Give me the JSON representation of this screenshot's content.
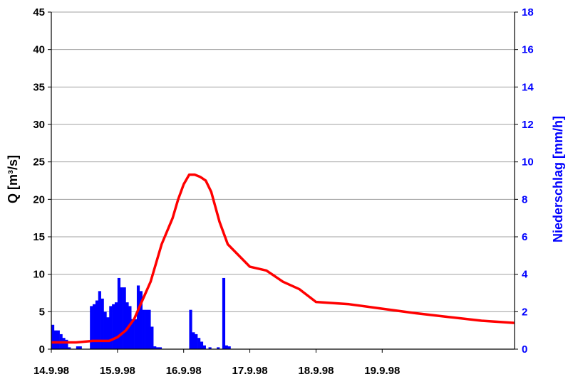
{
  "chart_data": {
    "type": "line+bar",
    "colors": {
      "discharge": "#ff0000",
      "rain": "#0000ff",
      "grid": "#a0a0a0",
      "axis": "#000000"
    },
    "x_axis": {
      "type": "date",
      "range": [
        "1998-09-14T00:00",
        "1998-09-20T24:00"
      ],
      "tick_labels": [
        "14.9.98",
        "15.9.98",
        "16.9.98",
        "17.9.98",
        "18.9.98",
        "19.9.98"
      ],
      "tick_values": [
        "1998-09-14T00:00",
        "1998-09-15T00:00",
        "1998-09-16T00:00",
        "1998-09-17T00:00",
        "1998-09-18T00:00",
        "1998-09-19T00:00"
      ]
    },
    "y_left": {
      "label": "Q [m³/s]",
      "ylim": [
        0,
        45
      ],
      "ticks": [
        0,
        5,
        10,
        15,
        20,
        25,
        30,
        35,
        40,
        45
      ]
    },
    "y_right": {
      "label": "Niederschlag [mm/h]",
      "ylim": [
        0,
        18
      ],
      "ticks": [
        0,
        2,
        4,
        6,
        8,
        10,
        12,
        14,
        16,
        18
      ]
    },
    "grid": "horizontal",
    "series": [
      {
        "type": "line",
        "axis": "left",
        "x": [
          "1998-09-14T00:00",
          "1998-09-14T09:00",
          "1998-09-14T15:00",
          "1998-09-14T21:00",
          "1998-09-15T00:00",
          "1998-09-15T03:00",
          "1998-09-15T06:00",
          "1998-09-15T09:00",
          "1998-09-15T12:00",
          "1998-09-15T16:00",
          "1998-09-15T20:00",
          "1998-09-15T22:00",
          "1998-09-16T00:00",
          "1998-09-16T02:00",
          "1998-09-16T04:00",
          "1998-09-16T06:00",
          "1998-09-16T08:00",
          "1998-09-16T10:00",
          "1998-09-16T13:00",
          "1998-09-16T16:00",
          "1998-09-17T00:00",
          "1998-09-17T06:00",
          "1998-09-17T12:00",
          "1998-09-17T18:00",
          "1998-09-18T00:00",
          "1998-09-18T12:00",
          "1998-09-19T00:00",
          "1998-09-19T12:00",
          "1998-09-20T00:00",
          "1998-09-20T12:00",
          "1998-09-20T24:00"
        ],
        "values": [
          0.9,
          0.9,
          1.1,
          1.1,
          1.6,
          2.5,
          4.0,
          6.5,
          9.0,
          14.0,
          17.5,
          20.0,
          22.0,
          23.3,
          23.3,
          23.0,
          22.5,
          21.0,
          17.0,
          14.0,
          11.0,
          10.5,
          9.0,
          8.0,
          6.3,
          6.0,
          5.4,
          4.8,
          4.3,
          3.8,
          3.5
        ]
      },
      {
        "type": "bar",
        "axis": "right",
        "bar_width_hours": 1,
        "x": [
          "1998-09-14T00:00",
          "1998-09-14T01:00",
          "1998-09-14T02:00",
          "1998-09-14T03:00",
          "1998-09-14T04:00",
          "1998-09-14T05:00",
          "1998-09-14T06:00",
          "1998-09-14T09:00",
          "1998-09-14T10:00",
          "1998-09-14T14:00",
          "1998-09-14T15:00",
          "1998-09-14T16:00",
          "1998-09-14T17:00",
          "1998-09-14T18:00",
          "1998-09-14T19:00",
          "1998-09-14T20:00",
          "1998-09-14T21:00",
          "1998-09-14T22:00",
          "1998-09-14T23:00",
          "1998-09-15T00:00",
          "1998-09-15T01:00",
          "1998-09-15T02:00",
          "1998-09-15T03:00",
          "1998-09-15T04:00",
          "1998-09-15T05:00",
          "1998-09-15T06:00",
          "1998-09-15T07:00",
          "1998-09-15T08:00",
          "1998-09-15T09:00",
          "1998-09-15T10:00",
          "1998-09-15T11:00",
          "1998-09-15T12:00",
          "1998-09-15T13:00",
          "1998-09-15T14:00",
          "1998-09-15T15:00",
          "1998-09-16T02:00",
          "1998-09-16T03:00",
          "1998-09-16T04:00",
          "1998-09-16T05:00",
          "1998-09-16T06:00",
          "1998-09-16T07:00",
          "1998-09-16T09:00",
          "1998-09-16T12:00",
          "1998-09-16T14:00",
          "1998-09-16T15:00",
          "1998-09-16T16:00"
        ],
        "values": [
          1.3,
          1.0,
          1.0,
          0.8,
          0.6,
          0.5,
          0.1,
          0.15,
          0.15,
          2.3,
          2.4,
          2.6,
          3.1,
          2.7,
          2.0,
          1.7,
          2.3,
          2.4,
          2.5,
          3.8,
          3.3,
          3.3,
          2.5,
          2.3,
          1.6,
          1.6,
          3.4,
          3.1,
          2.1,
          2.1,
          2.1,
          1.2,
          0.15,
          0.1,
          0.1,
          2.1,
          0.9,
          0.8,
          0.6,
          0.4,
          0.2,
          0.1,
          0.1,
          3.8,
          0.2,
          0.15
        ]
      }
    ]
  }
}
